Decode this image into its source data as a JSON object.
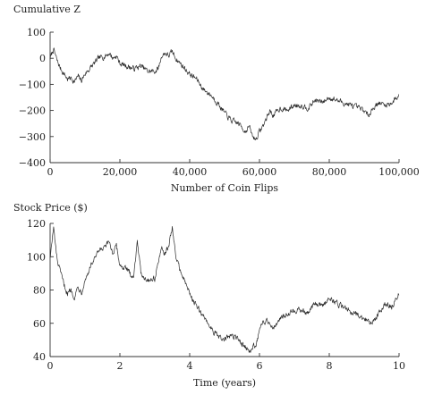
{
  "chart_data": [
    {
      "type": "line",
      "title": "Cumulative Z",
      "xlabel": "Number of Coin Flips",
      "ylabel": "",
      "xlim": [
        0,
        100000
      ],
      "ylim": [
        -400,
        100
      ],
      "grid": false,
      "xticks": [
        0,
        20000,
        40000,
        60000,
        80000,
        100000
      ],
      "xtick_labels": [
        "0",
        "20,000",
        "40,000",
        "60,000",
        "80,000",
        "100,000"
      ],
      "yticks": [
        -400,
        -300,
        -200,
        -100,
        0,
        100
      ],
      "ytick_labels": [
        "−400",
        "−300",
        "−200",
        "−100",
        "0",
        "100"
      ],
      "series": [
        {
          "x": [
            0,
            1000,
            2000,
            3000,
            4000,
            5000,
            6000,
            7000,
            8000,
            9000,
            10000,
            12000,
            14000,
            16000,
            17000,
            18000,
            19000,
            20000,
            22000,
            24000,
            26000,
            28000,
            30000,
            31000,
            32000,
            33000,
            34000,
            35000,
            36000,
            38000,
            40000,
            42000,
            44000,
            46000,
            48000,
            50000,
            52000,
            54000,
            56000,
            57000,
            58000,
            59000,
            60000,
            61000,
            62000,
            63000,
            64000,
            66000,
            68000,
            70000,
            72000,
            74000,
            76000,
            78000,
            80000,
            82000,
            84000,
            86000,
            88000,
            90000,
            91000,
            92000,
            94000,
            96000,
            98000,
            100000
          ],
          "y": [
            0,
            35,
            -10,
            -40,
            -60,
            -80,
            -75,
            -90,
            -70,
            -85,
            -60,
            -30,
            0,
            10,
            20,
            0,
            10,
            -20,
            -30,
            -40,
            -30,
            -50,
            -50,
            -40,
            10,
            20,
            10,
            25,
            0,
            -30,
            -60,
            -80,
            -120,
            -140,
            -170,
            -210,
            -240,
            -250,
            -280,
            -260,
            -300,
            -310,
            -280,
            -260,
            -230,
            -200,
            -220,
            -190,
            -200,
            -180,
            -180,
            -190,
            -160,
            -170,
            -150,
            -160,
            -170,
            -180,
            -190,
            -200,
            -220,
            -200,
            -170,
            -180,
            -170,
            -140
          ]
        }
      ]
    },
    {
      "type": "line",
      "title": "Stock Price ($)",
      "xlabel": "Time (years)",
      "ylabel": "",
      "xlim": [
        0,
        10
      ],
      "ylim": [
        40,
        120
      ],
      "grid": false,
      "xticks": [
        0,
        2,
        4,
        6,
        8,
        10
      ],
      "xtick_labels": [
        "0",
        "2",
        "4",
        "6",
        "8",
        "10"
      ],
      "yticks": [
        40,
        60,
        80,
        100,
        120
      ],
      "ytick_labels": [
        "40",
        "60",
        "80",
        "100",
        "120"
      ],
      "series": [
        {
          "x": [
            0,
            0.1,
            0.2,
            0.3,
            0.4,
            0.5,
            0.6,
            0.7,
            0.8,
            0.9,
            1.0,
            1.2,
            1.4,
            1.6,
            1.7,
            1.8,
            1.9,
            2.0,
            2.2,
            2.4,
            2.5,
            2.6,
            2.8,
            3.0,
            3.1,
            3.2,
            3.3,
            3.4,
            3.5,
            3.6,
            3.8,
            4.0,
            4.2,
            4.4,
            4.6,
            4.8,
            5.0,
            5.2,
            5.4,
            5.6,
            5.7,
            5.8,
            5.9,
            6.0,
            6.1,
            6.2,
            6.4,
            6.6,
            6.8,
            7.0,
            7.2,
            7.4,
            7.6,
            7.8,
            8.0,
            8.2,
            8.4,
            8.6,
            8.8,
            9.0,
            9.2,
            9.4,
            9.6,
            9.8,
            10.0
          ],
          "y": [
            100,
            117,
            98,
            90,
            83,
            78,
            80,
            76,
            82,
            79,
            86,
            96,
            103,
            106,
            109,
            102,
            106,
            95,
            92,
            88,
            111,
            90,
            86,
            87,
            97,
            104,
            102,
            106,
            118,
            100,
            88,
            78,
            70,
            64,
            58,
            52,
            50,
            53,
            50,
            46,
            42,
            45,
            48,
            55,
            60,
            62,
            58,
            63,
            66,
            68,
            68,
            66,
            72,
            70,
            76,
            72,
            70,
            68,
            65,
            63,
            60,
            65,
            72,
            70,
            78
          ]
        }
      ]
    }
  ]
}
